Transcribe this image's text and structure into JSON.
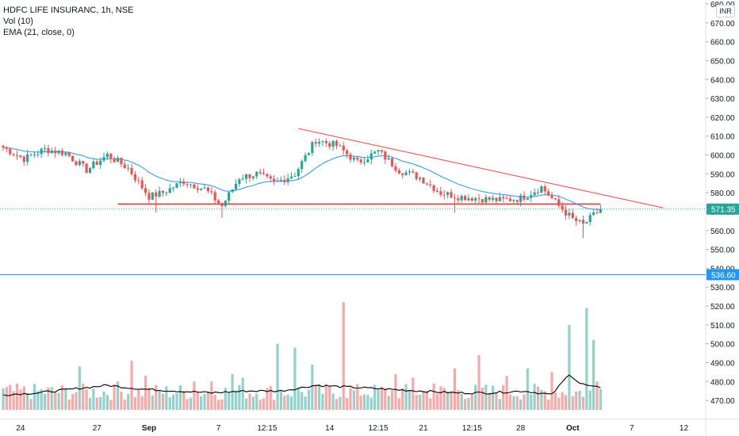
{
  "legend": {
    "symbol": "HDFC LIFE INSURANC, 1h, NSE",
    "vol": "Vol (10)",
    "ema": "EMA (21, close, 0)"
  },
  "currency_button": "INR",
  "chart_data": {
    "type": "candlestick",
    "y_axis": {
      "range": [
        465,
        680
      ],
      "ticks": [
        680,
        670,
        660,
        650,
        640,
        630,
        620,
        610,
        600,
        590,
        580,
        570,
        560,
        550,
        540,
        530,
        520,
        510,
        500,
        490,
        480,
        470
      ],
      "tick_labels": [
        "680.00",
        "670.00",
        "660.00",
        "650.00",
        "640.00",
        "630.00",
        "620.00",
        "610.00",
        "600.00",
        "590.00",
        "580.00",
        "570.00",
        "560.00",
        "550.00",
        "540.00",
        "530.00",
        "520.00",
        "510.00",
        "500.00",
        "490.00",
        "480.00",
        "470.00"
      ]
    },
    "x_axis": {
      "labels": [
        "24",
        "27",
        "Sep",
        "7",
        "12:15",
        "14",
        "12:15",
        "21",
        "12:15",
        "28",
        "Oct",
        "7",
        "12"
      ],
      "label_index": [
        5,
        27,
        42,
        62,
        76,
        94,
        108,
        121,
        135,
        149,
        164,
        181,
        196
      ],
      "bold_labels": [
        "Sep",
        "Oct"
      ]
    },
    "price_labels": [
      {
        "text": "571.35",
        "value": 571.35,
        "color": "#26a69a"
      },
      {
        "text": "536.60",
        "value": 536.6,
        "color": "#2196f3"
      }
    ],
    "horizontal_lines": [
      {
        "name": "blue-horizontal-line",
        "value": 536.6,
        "color": "#2196f3"
      },
      {
        "name": "support-line",
        "value": 574,
        "from_index": 33,
        "to_index": 172,
        "color": "#e53935"
      }
    ],
    "trend_lines": [
      {
        "name": "resistance-trendline",
        "from": {
          "index": 85,
          "value": 614
        },
        "to": {
          "index": 190,
          "value": 572
        },
        "color": "#ef5350"
      }
    ],
    "close_price_line": 571.35,
    "price_anchors": [
      [
        0,
        604
      ],
      [
        6,
        598
      ],
      [
        12,
        603
      ],
      [
        18,
        601
      ],
      [
        24,
        592
      ],
      [
        30,
        600
      ],
      [
        36,
        593
      ],
      [
        42,
        578
      ],
      [
        46,
        580
      ],
      [
        52,
        586
      ],
      [
        58,
        582
      ],
      [
        63,
        573
      ],
      [
        68,
        588
      ],
      [
        73,
        590
      ],
      [
        78,
        585
      ],
      [
        84,
        590
      ],
      [
        90,
        608
      ],
      [
        96,
        605
      ],
      [
        102,
        596
      ],
      [
        108,
        602
      ],
      [
        114,
        592
      ],
      [
        120,
        588
      ],
      [
        126,
        580
      ],
      [
        131,
        578
      ],
      [
        137,
        577
      ],
      [
        143,
        576
      ],
      [
        149,
        577
      ],
      [
        155,
        583
      ],
      [
        160,
        573
      ],
      [
        164,
        566
      ],
      [
        167,
        563
      ],
      [
        170,
        568
      ],
      [
        172,
        571.35
      ]
    ],
    "volume_anchors": [
      [
        0,
        473
      ],
      [
        10,
        474
      ],
      [
        20,
        476
      ],
      [
        30,
        478
      ],
      [
        40,
        476
      ],
      [
        50,
        475
      ],
      [
        60,
        474
      ],
      [
        70,
        475
      ],
      [
        80,
        475
      ],
      [
        90,
        478
      ],
      [
        100,
        477
      ],
      [
        110,
        476
      ],
      [
        120,
        475
      ],
      [
        130,
        474
      ],
      [
        140,
        474
      ],
      [
        150,
        475
      ],
      [
        158,
        473
      ],
      [
        163,
        484
      ],
      [
        166,
        479
      ],
      [
        170,
        477
      ],
      [
        172,
        477
      ]
    ],
    "candle_count": 173,
    "colors": {
      "up": "#26a69a",
      "down": "#ef5350",
      "ema": "#2196f3",
      "volume_ma": "#000000"
    }
  }
}
